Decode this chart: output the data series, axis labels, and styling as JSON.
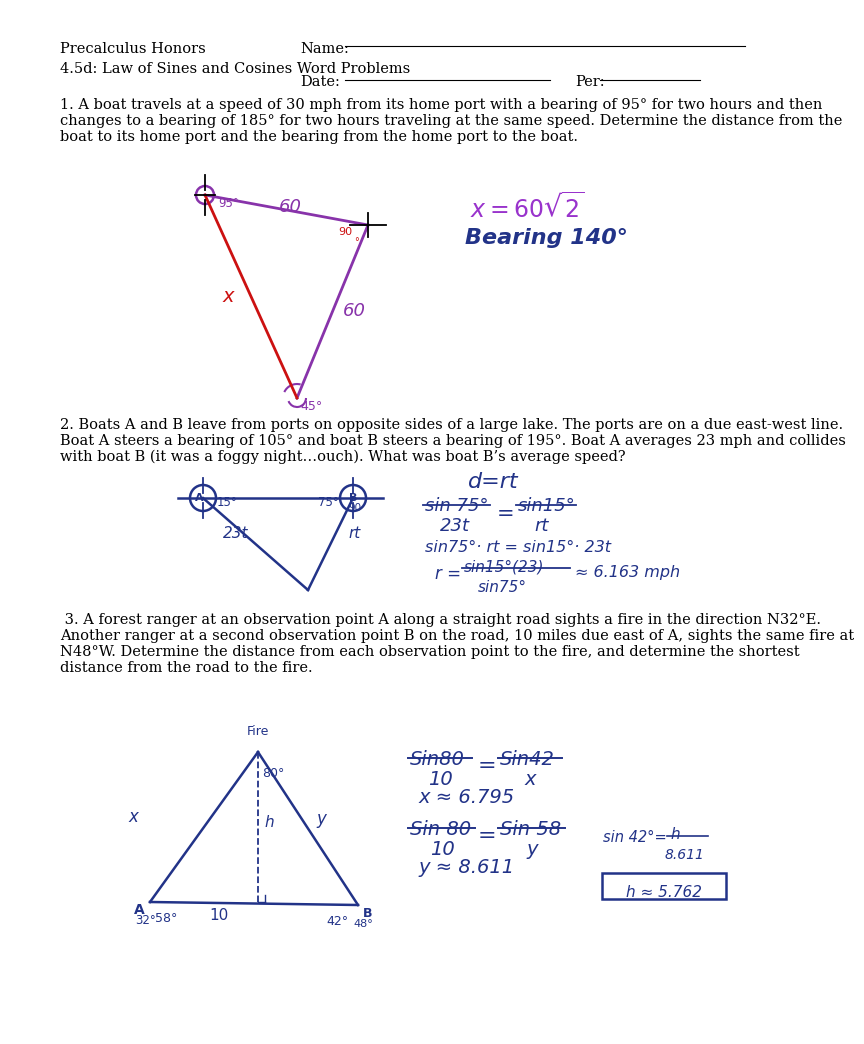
{
  "background_color": "#ffffff",
  "page_width": 7.91,
  "page_height": 10.24,
  "header": {
    "line1_left": "Precalculus Honors",
    "line1_right": "Name:",
    "line2_left": "4.5d: Law of Sines and Cosines Word Problems",
    "line3_right": "Date:",
    "line3_per": "Per:",
    "font_size": 10.5
  },
  "prob1_text": [
    "1. A boat travels at a speed of 30 mph from its home port with a bearing of 95° for two hours and then",
    "changes to a bearing of 185° for two hours traveling at the same speed. Determine the distance from the",
    "boat to its home port and the bearing from the home port to the boat."
  ],
  "prob2_text": [
    "2. Boats A and B leave from ports on opposite sides of a large lake. The ports are on a due east-west line.",
    "Boat A steers a bearing of 105° and boat B steers a bearing of 195°. Boat A averages 23 mph and collides",
    "with boat B (it was a foggy night…ouch). What was boat B’s average speed?"
  ],
  "prob3_text": [
    " 3. A forest ranger at an observation point A along a straight road sights a fire in the direction N32°E.",
    "Another ranger at a second observation point B on the road, 10 miles due east of A, sights the same fire at",
    "N48°W. Determine the distance from each observation point to the fire, and determine the shortest",
    "distance from the road to the fire."
  ],
  "text_fontsize": 10.5,
  "purple_color": "#8833aa",
  "blue_color": "#223388",
  "red_color": "#cc1111"
}
